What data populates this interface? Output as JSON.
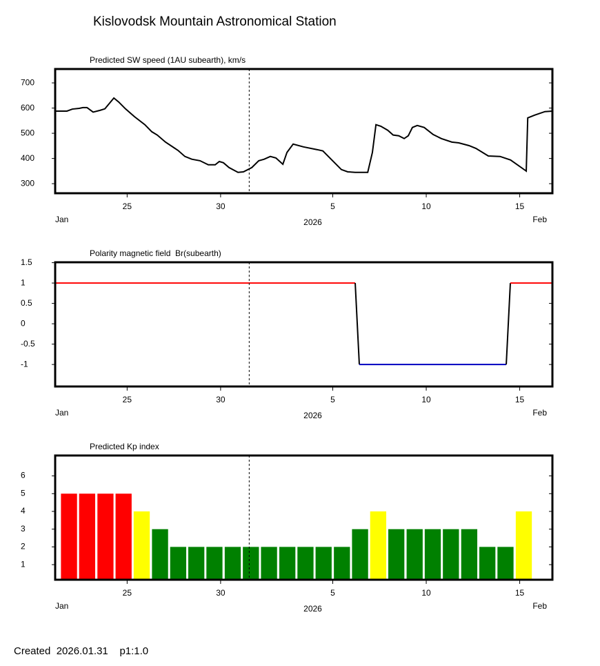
{
  "page_title": "Kislovodsk Mountain Astronomical Station",
  "footer": "Created  2026.01.31    p1:1.0",
  "chart_data": [
    {
      "type": "line",
      "title": "Predicted SW speed (1AU subearth), km/s",
      "x": [
        21.15,
        21.78,
        22.07,
        22.44,
        22.63,
        22.85,
        23.18,
        23.55,
        23.81,
        24.29,
        24.55,
        24.91,
        25.39,
        25.95,
        26.32,
        26.61,
        27.05,
        27.72,
        28.09,
        28.46,
        28.9,
        29.34,
        29.71,
        29.93,
        30.15,
        30.45,
        30.93,
        31.22,
        31.67,
        32.04,
        32.33,
        32.66,
        32.96,
        33.33,
        33.55,
        33.88,
        34.43,
        35.17,
        35.47,
        35.91,
        36.46,
        36.8,
        37.2,
        37.87,
        38.12,
        38.31,
        38.57,
        38.94,
        39.23,
        39.53,
        39.82,
        40.04,
        40.26,
        40.52,
        40.89,
        41.37,
        41.81,
        42.37,
        42.74,
        43.29,
        43.66,
        44.32,
        44.95,
        45.51,
        46.35,
        46.43,
        46.8,
        47.35,
        47.75
      ],
      "series": [
        {
          "color": "#000000",
          "values": [
            588,
            588,
            596,
            599,
            602,
            602,
            584,
            591,
            597,
            640,
            624,
            597,
            566,
            534,
            506,
            493,
            465,
            432,
            408,
            397,
            391,
            375,
            375,
            388,
            383,
            364,
            345,
            347,
            364,
            391,
            397,
            408,
            402,
            377,
            424,
            457,
            446,
            435,
            430,
            397,
            356,
            347,
            345,
            345,
            424,
            534,
            528,
            512,
            493,
            490,
            479,
            490,
            523,
            531,
            523,
            495,
            479,
            465,
            462,
            451,
            440,
            410,
            408,
            394,
            350,
            561,
            572,
            586,
            588
          ]
        }
      ],
      "xlim": [
        21.15,
        47.75
      ],
      "ylim": [
        262,
        755
      ],
      "yticks": [
        300,
        400,
        500,
        600,
        700
      ],
      "xticks": [
        25,
        30,
        {
          "value": 36,
          "label": "5"
        },
        {
          "value": 41,
          "label": "10"
        },
        {
          "value": 46,
          "label": "15"
        }
      ],
      "x_start_label": "Jan",
      "x_year_label": "2026",
      "x_end_label": "Feb",
      "now_x": 31.53
    },
    {
      "type": "line",
      "title": "Polarity magnetic field  Br(subearth)",
      "x": [
        21.15,
        37.2,
        37.42,
        45.28,
        45.5,
        47.75
      ],
      "series": [
        {
          "color": "#000000",
          "pos_color": "#ff0000",
          "neg_color": "#0000c0",
          "values": [
            1,
            1,
            -1,
            -1,
            1,
            1
          ]
        }
      ],
      "xlim": [
        21.15,
        47.75
      ],
      "ylim": [
        -1.54,
        1.51
      ],
      "yticks": [
        -1,
        -0.5,
        0,
        0.5,
        1,
        1.5
      ],
      "xticks": [
        25,
        30,
        {
          "value": 36,
          "label": "5"
        },
        {
          "value": 41,
          "label": "10"
        },
        {
          "value": 46,
          "label": "15"
        }
      ],
      "x_start_label": "Jan",
      "x_year_label": "2026",
      "x_end_label": "Feb",
      "now_x": 31.53
    },
    {
      "type": "bar",
      "title": "Predicted Kp index",
      "x": [
        21.89,
        22.86,
        23.84,
        24.81,
        25.78,
        26.76,
        27.73,
        28.7,
        29.67,
        30.65,
        31.62,
        32.59,
        33.57,
        34.54,
        35.51,
        36.49,
        37.46,
        38.43,
        39.4,
        40.38,
        41.35,
        42.32,
        43.3,
        44.27,
        45.24,
        46.22
      ],
      "values": [
        5,
        5,
        5,
        5,
        4,
        3,
        2,
        2,
        2,
        2,
        2,
        2,
        2,
        2,
        2,
        2,
        3,
        4,
        3,
        3,
        3,
        3,
        3,
        2,
        2,
        4
      ],
      "colors": [
        "#ff0000",
        "#ff0000",
        "#ff0000",
        "#ff0000",
        "#ffff00",
        "#008000",
        "#008000",
        "#008000",
        "#008000",
        "#008000",
        "#008000",
        "#008000",
        "#008000",
        "#008000",
        "#008000",
        "#008000",
        "#008000",
        "#ffff00",
        "#008000",
        "#008000",
        "#008000",
        "#008000",
        "#008000",
        "#008000",
        "#008000",
        "#ffff00"
      ],
      "xlim": [
        21.15,
        47.75
      ],
      "ylim": [
        0.15,
        7.15
      ],
      "yticks": [
        1,
        2,
        3,
        4,
        5,
        6
      ],
      "xticks": [
        25,
        30,
        {
          "value": 36,
          "label": "5"
        },
        {
          "value": 41,
          "label": "10"
        },
        {
          "value": 46,
          "label": "15"
        }
      ],
      "x_start_label": "Jan",
      "x_year_label": "2026",
      "x_end_label": "Feb",
      "now_x": 31.53
    }
  ]
}
